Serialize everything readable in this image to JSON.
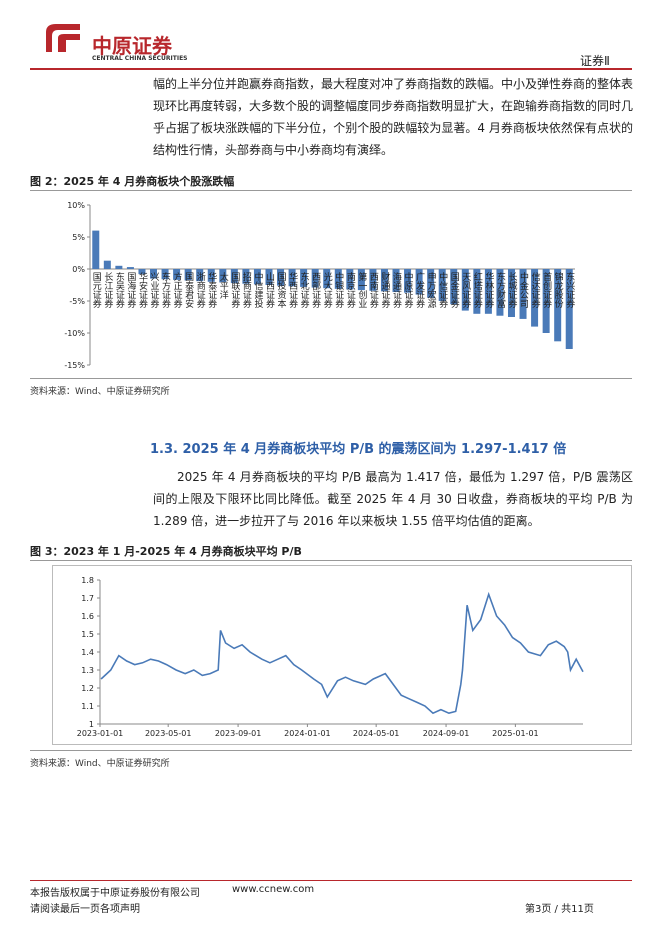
{
  "header": {
    "brand": "中原证券",
    "brand_en": "CENTRAL CHINA SECURITIES",
    "industry": "证券Ⅱ"
  },
  "paragraphs": [
    "幅的上半分位并跑赢券商指数，最大程度对冲了券商指数的跌幅。中小及弹性券商的整体表现环比再度转弱，大多数个股的调整幅度同步券商指数明显扩大，在跑输券商指数的同时几乎占据了板块涨跌幅的下半分位，个别个股的跌幅较为显著。4 月券商板块依然保有点状的结构性行情，头部券商与中小券商均有演绎。"
  ],
  "section": {
    "heading": "1.3.  2025 年 4 月券商板块平均 P/B 的震荡区间为 1.297-1.417 倍",
    "paragraph": "2025 年 4 月券商板块的平均 P/B 最高为 1.417 倍，最低为 1.297 倍，P/B 震荡区间的上限及下限环比同比降低。截至 2025 年 4 月 30 日收盘，券商板块的平均 P/B 为 1.289 倍，进一步拉开了与 2016 年以来板块 1.55 倍平均估值的距离。"
  },
  "chart_data": [
    {
      "type": "bar",
      "title": "图 2：2025 年 4 月券商板块个股涨跌幅",
      "source": "资料来源：Wind、中原证券研究所",
      "color": "#4a7ab8",
      "categories": [
        "国元证券",
        "长江证券",
        "东吴证券",
        "国海证券",
        "华安证券",
        "兴业证券",
        "东方证券",
        "方正证券",
        "国泰君安",
        "浙商证券",
        "华泰证券",
        "太平洋",
        "国联证券",
        "招商证券",
        "中信建投",
        "山西证券",
        "国投资本",
        "华西证券",
        "东北证券",
        "西部证券",
        "光大证券",
        "中银证券",
        "南京证券",
        "第一创业",
        "西南证券",
        "财通证券",
        "海通证券",
        "中原证券",
        "广发证券",
        "申万宏源",
        "中信证券",
        "国金证券",
        "天风证券",
        "红塔证券",
        "华林证券",
        "东方财富",
        "长城证券",
        "中金公司",
        "信达证券",
        "首创证券",
        "锦龙股份",
        "东兴证券"
      ],
      "values": [
        6.0,
        1.3,
        0.5,
        0.3,
        -0.8,
        -1.5,
        -1.6,
        -1.7,
        -1.8,
        -1.9,
        -2.0,
        -2.1,
        -2.2,
        -2.3,
        -2.4,
        -2.5,
        -2.6,
        -2.7,
        -2.8,
        -2.9,
        -3.0,
        -3.1,
        -3.2,
        -3.3,
        -3.4,
        -3.5,
        -3.6,
        -3.7,
        -4.0,
        -4.5,
        -5.0,
        -5.5,
        -6.5,
        -7.0,
        -7.0,
        -7.3,
        -7.5,
        -7.8,
        -9.0,
        -10.0,
        -11.3,
        -12.5
      ],
      "ylim": [
        -15,
        10
      ],
      "yticks": [
        {
          "value": 10,
          "label": "10%"
        },
        {
          "value": 5,
          "label": "5%"
        },
        {
          "value": 0,
          "label": "0%"
        },
        {
          "value": -5,
          "label": "-5%"
        },
        {
          "value": -10,
          "label": "-10%"
        },
        {
          "value": -15,
          "label": "-15%"
        }
      ]
    },
    {
      "type": "line",
      "title": "图 3：2023 年 1 月-2025 年 4 月券商板块平均 P/B",
      "source": "资料来源：Wind、中原证券研究所",
      "color": "#4a7ab8",
      "x": [
        "2023-01-03",
        "2023-01-20",
        "2023-02-03",
        "2023-02-17",
        "2023-03-03",
        "2023-03-17",
        "2023-03-31",
        "2023-04-14",
        "2023-04-28",
        "2023-05-15",
        "2023-05-31",
        "2023-06-15",
        "2023-06-30",
        "2023-07-14",
        "2023-07-28",
        "2023-08-01",
        "2023-08-10",
        "2023-08-25",
        "2023-09-08",
        "2023-09-22",
        "2023-10-13",
        "2023-10-27",
        "2023-11-10",
        "2023-11-24",
        "2023-12-08",
        "2023-12-22",
        "2024-01-12",
        "2024-01-26",
        "2024-02-05",
        "2024-02-23",
        "2024-03-08",
        "2024-03-22",
        "2024-04-12",
        "2024-04-26",
        "2024-05-17",
        "2024-05-31",
        "2024-06-14",
        "2024-06-28",
        "2024-07-12",
        "2024-07-26",
        "2024-08-09",
        "2024-08-23",
        "2024-09-06",
        "2024-09-18",
        "2024-09-27",
        "2024-09-30",
        "2024-10-08",
        "2024-10-18",
        "2024-11-01",
        "2024-11-15",
        "2024-11-29",
        "2024-12-13",
        "2024-12-27",
        "2025-01-10",
        "2025-01-24",
        "2025-02-14",
        "2025-02-28",
        "2025-03-14",
        "2025-03-28",
        "2025-04-03",
        "2025-04-08",
        "2025-04-18",
        "2025-04-30"
      ],
      "values": [
        1.25,
        1.3,
        1.38,
        1.35,
        1.33,
        1.34,
        1.36,
        1.35,
        1.33,
        1.3,
        1.28,
        1.3,
        1.27,
        1.28,
        1.3,
        1.52,
        1.45,
        1.42,
        1.44,
        1.4,
        1.36,
        1.34,
        1.36,
        1.38,
        1.33,
        1.3,
        1.25,
        1.22,
        1.15,
        1.24,
        1.26,
        1.24,
        1.22,
        1.25,
        1.28,
        1.22,
        1.16,
        1.14,
        1.12,
        1.1,
        1.06,
        1.08,
        1.06,
        1.07,
        1.22,
        1.3,
        1.66,
        1.52,
        1.58,
        1.72,
        1.6,
        1.55,
        1.48,
        1.45,
        1.4,
        1.38,
        1.44,
        1.46,
        1.43,
        1.4,
        1.3,
        1.36,
        1.29
      ],
      "xlim": [
        "2023-01-01",
        "2025-04-30"
      ],
      "xticks": [
        "2023-01-01",
        "2023-05-01",
        "2023-09-01",
        "2024-01-01",
        "2024-05-01",
        "2024-09-01",
        "2025-01-01"
      ],
      "ylim": [
        1,
        1.8
      ],
      "yticks": [
        1,
        1.1,
        1.2,
        1.3,
        1.4,
        1.5,
        1.6,
        1.7,
        1.8
      ]
    }
  ],
  "footer": {
    "copyright": "本报告版权属于中原证券股份有限公司",
    "website": "www.ccnew.com",
    "notice": "请阅读最后一页各项声明",
    "page": "第3页 / 共11页"
  }
}
